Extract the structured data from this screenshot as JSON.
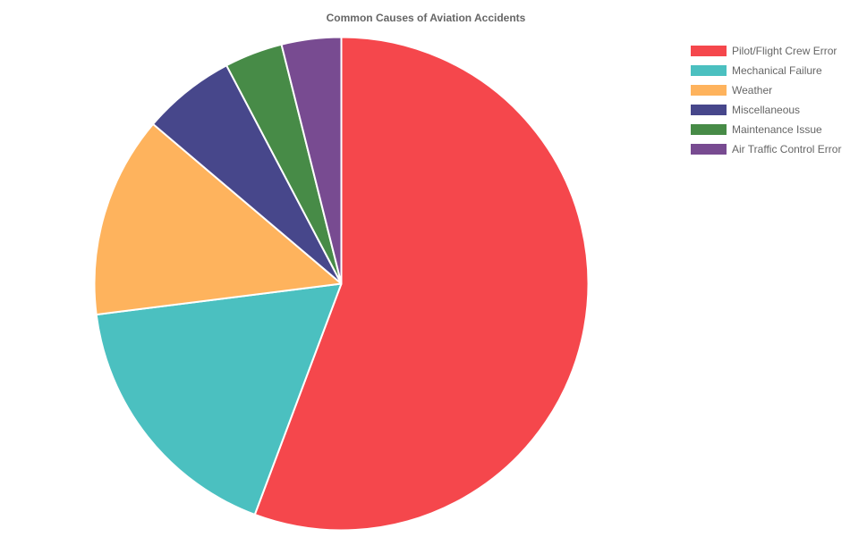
{
  "chart_data": {
    "type": "pie",
    "title": "Common Causes of Aviation Accidents",
    "categories": [
      "Pilot/Flight Crew Error",
      "Mechanical Failure",
      "Weather",
      "Miscellaneous",
      "Maintenance Issue",
      "Air Traffic Control Error"
    ],
    "values": [
      55.7,
      17.3,
      13.2,
      6.1,
      3.8,
      3.9
    ],
    "colors": [
      "#f5474c",
      "#4bc0c0",
      "#feb35d",
      "#47478b",
      "#478b47",
      "#784b91"
    ],
    "legend_position": "top-right"
  }
}
